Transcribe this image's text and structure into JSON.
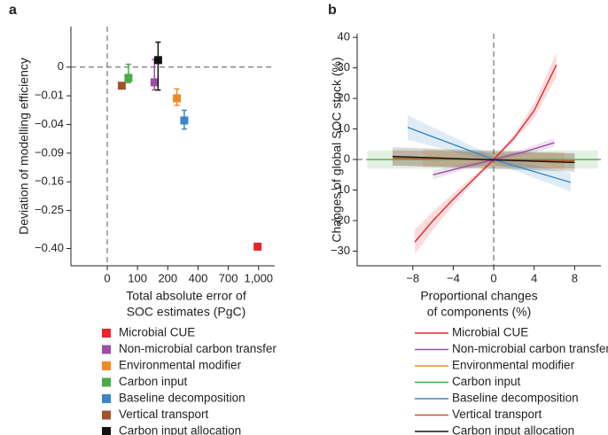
{
  "chart_data": [
    {
      "type": "scatter",
      "panel": "a",
      "xlabel": [
        "Total absolute error of",
        "SOC estimates (PgC)"
      ],
      "ylabel": "Deviation of modelling efficiency",
      "xlim": [
        -120,
        1160
      ],
      "ylim": [
        -0.48,
        0.02
      ],
      "yscale": "sqrt",
      "xticks": [
        0,
        100,
        200,
        400,
        700,
        {
          "value": 1000,
          "label": "1,000"
        }
      ],
      "yticks": [
        0,
        {
          "value": -0.01,
          "label": "−0.01"
        },
        {
          "value": -0.04,
          "label": "−0.04"
        },
        {
          "value": -0.09,
          "label": "−0.09"
        },
        {
          "value": -0.16,
          "label": "−0.16"
        },
        {
          "value": -0.25,
          "label": "−0.25"
        },
        {
          "value": -0.4,
          "label": "−0.40"
        }
      ],
      "series": [
        {
          "name": "Microbial CUE",
          "color": "#e4262b",
          "x": [
            990
          ],
          "values": [
            -0.392
          ],
          "errors": [
            0.006
          ]
        },
        {
          "name": "Non-microbial carbon transfer",
          "color": "#9b4fa5",
          "x": [
            156
          ],
          "values": [
            -0.0028
          ],
          "errors": [
            0.0035
          ]
        },
        {
          "name": "Environmental modifier",
          "color": "#f08a24",
          "x": [
            260
          ],
          "values": [
            -0.0118
          ],
          "errors": [
            0.006
          ]
        },
        {
          "name": "Carbon input",
          "color": "#4bab47",
          "x": [
            70
          ],
          "values": [
            -0.0014
          ],
          "errors": [
            0.0015
          ]
        },
        {
          "name": "Baseline decomposition",
          "color": "#3a86c4",
          "x": [
            309
          ],
          "values": [
            -0.0346
          ],
          "errors": [
            0.012
          ]
        },
        {
          "name": "Vertical transport",
          "color": "#a0522d",
          "x": [
            48
          ],
          "values": [
            -0.0042
          ],
          "errors": [
            0.0005
          ]
        },
        {
          "name": "Carbon input allocation",
          "color": "#111111",
          "x": [
            168
          ],
          "values": [
            0.0006
          ],
          "errors": [
            0.007
          ]
        }
      ]
    },
    {
      "type": "line",
      "panel": "b",
      "xlabel": [
        "Proportional changes",
        "of components (%)"
      ],
      "ylabel": "Changes of global SOC stock (%)",
      "xlim": [
        -13.5,
        10.6
      ],
      "ylim": [
        -34.8,
        41.2
      ],
      "xticks": [
        {
          "value": -8,
          "label": "−8"
        },
        {
          "value": -4,
          "label": "−4"
        },
        0,
        4,
        8
      ],
      "yticks": [
        {
          "value": -30,
          "label": "−30"
        },
        {
          "value": -20,
          "label": "−20"
        },
        {
          "value": -10,
          "label": "−10"
        },
        0,
        10,
        20,
        30,
        40
      ],
      "series": [
        {
          "name": "Microbial CUE",
          "color": "#e4262b",
          "x": [
            -7.8,
            -6,
            -4,
            -2,
            0,
            2,
            4,
            6.2
          ],
          "values": [
            -27,
            -20,
            -13,
            -6.5,
            0,
            7,
            16,
            31
          ],
          "band": [
            4,
            3,
            2,
            1,
            0.5,
            1,
            2.5,
            4
          ]
        },
        {
          "name": "Non-microbial carbon transfer",
          "color": "#9b4fa5",
          "x": [
            -6,
            -3,
            0,
            3,
            6
          ],
          "values": [
            -5,
            -2.5,
            0,
            2.5,
            5.5
          ],
          "band": [
            1.5,
            1,
            0.5,
            1,
            1.5
          ]
        },
        {
          "name": "Environmental modifier",
          "color": "#f08a24",
          "x": [
            -7,
            0,
            7
          ],
          "values": [
            0.5,
            0,
            -0.5
          ],
          "band": [
            3,
            2,
            3
          ]
        },
        {
          "name": "Carbon input",
          "color": "#4bab47",
          "x": [
            -12.5,
            10.3
          ],
          "values": [
            0,
            0
          ],
          "band": [
            3,
            3
          ]
        },
        {
          "name": "Baseline decomposition",
          "color": "#3a86c4",
          "x": [
            -8.5,
            0,
            7.6
          ],
          "values": [
            10.5,
            0,
            -7.5
          ],
          "band": [
            4,
            1,
            3
          ]
        },
        {
          "name": "Vertical transport",
          "color": "#c0502a",
          "x": [
            -10,
            8
          ],
          "values": [
            0.5,
            -0.5
          ],
          "band": [
            2.5,
            2.5
          ]
        },
        {
          "name": "Carbon input allocation",
          "color": "#111111",
          "x": [
            -10,
            8
          ],
          "values": [
            1,
            -1
          ],
          "band": [
            3,
            3
          ]
        }
      ]
    }
  ]
}
